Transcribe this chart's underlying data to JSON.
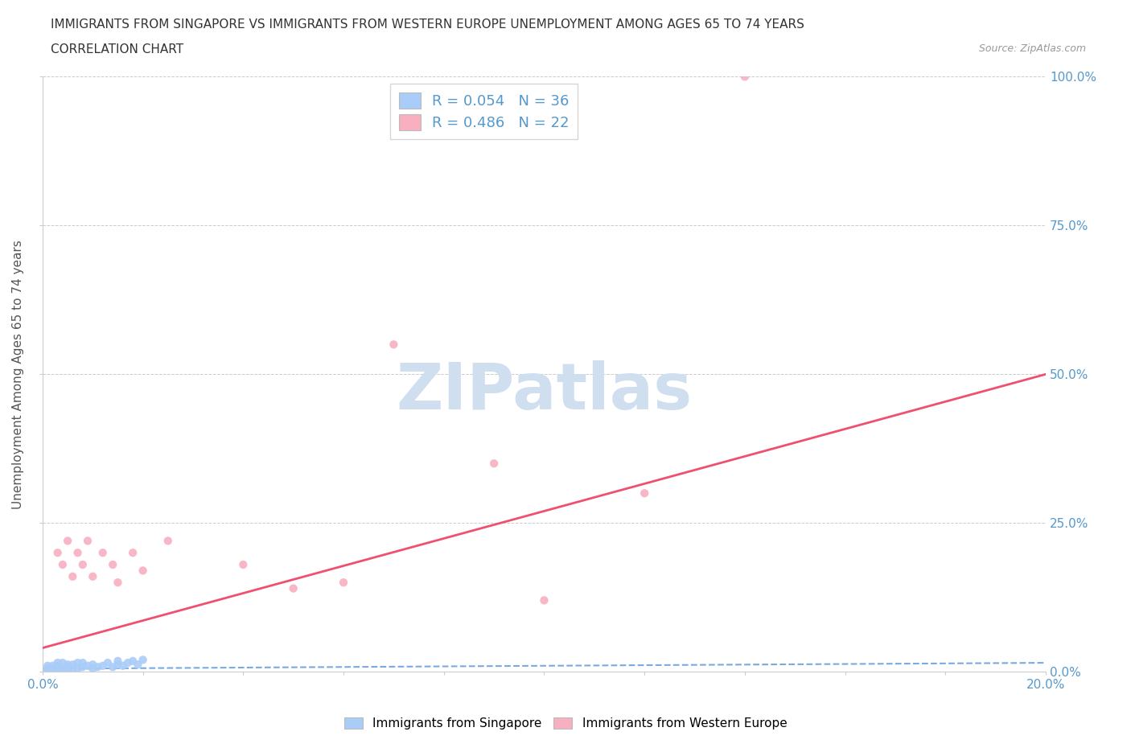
{
  "title_line1": "IMMIGRANTS FROM SINGAPORE VS IMMIGRANTS FROM WESTERN EUROPE UNEMPLOYMENT AMONG AGES 65 TO 74 YEARS",
  "title_line2": "CORRELATION CHART",
  "source_text": "Source: ZipAtlas.com",
  "ylabel": "Unemployment Among Ages 65 to 74 years",
  "xlim": [
    0.0,
    0.2
  ],
  "ylim": [
    0.0,
    1.0
  ],
  "ytick_labels": [
    "0.0%",
    "25.0%",
    "50.0%",
    "75.0%",
    "100.0%"
  ],
  "ytick_values": [
    0.0,
    0.25,
    0.5,
    0.75,
    1.0
  ],
  "xtick_labels": [
    "0.0%",
    "",
    "",
    "",
    "",
    "",
    "",
    "",
    "",
    "",
    "20.0%"
  ],
  "xtick_values": [
    0.0,
    0.02,
    0.04,
    0.06,
    0.08,
    0.1,
    0.12,
    0.14,
    0.16,
    0.18,
    0.2
  ],
  "legend_r1": "R = 0.054",
  "legend_n1": "N = 36",
  "legend_r2": "R = 0.486",
  "legend_n2": "N = 22",
  "singapore_color": "#aaccf8",
  "western_color": "#f8b0c0",
  "singapore_line_color": "#7aaadd",
  "western_line_color": "#f05070",
  "watermark_text": "ZIPatlas",
  "watermark_color": "#d0dff0",
  "background_color": "#ffffff",
  "grid_color": "#cccccc",
  "singapore_x": [
    0.0005,
    0.001,
    0.001,
    0.0015,
    0.002,
    0.002,
    0.0025,
    0.003,
    0.003,
    0.003,
    0.004,
    0.004,
    0.004,
    0.005,
    0.005,
    0.005,
    0.006,
    0.006,
    0.007,
    0.007,
    0.008,
    0.008,
    0.009,
    0.01,
    0.01,
    0.011,
    0.012,
    0.013,
    0.014,
    0.015,
    0.015,
    0.016,
    0.017,
    0.018,
    0.019,
    0.02
  ],
  "singapore_y": [
    0.0,
    0.005,
    0.01,
    0.0,
    0.005,
    0.01,
    0.0,
    0.005,
    0.01,
    0.015,
    0.0,
    0.005,
    0.015,
    0.0,
    0.008,
    0.012,
    0.005,
    0.012,
    0.005,
    0.015,
    0.008,
    0.015,
    0.01,
    0.005,
    0.012,
    0.008,
    0.01,
    0.015,
    0.008,
    0.012,
    0.018,
    0.01,
    0.015,
    0.018,
    0.012,
    0.02
  ],
  "western_x": [
    0.003,
    0.004,
    0.005,
    0.006,
    0.007,
    0.008,
    0.009,
    0.01,
    0.012,
    0.014,
    0.015,
    0.018,
    0.02,
    0.025,
    0.04,
    0.05,
    0.06,
    0.07,
    0.09,
    0.1,
    0.12,
    0.14
  ],
  "western_y": [
    0.2,
    0.18,
    0.22,
    0.16,
    0.2,
    0.18,
    0.22,
    0.16,
    0.2,
    0.18,
    0.15,
    0.2,
    0.17,
    0.22,
    0.18,
    0.14,
    0.15,
    0.55,
    0.35,
    0.12,
    0.3,
    1.0
  ],
  "sg_trend_x": [
    0.0,
    0.2
  ],
  "sg_trend_y": [
    0.005,
    0.015
  ],
  "we_trend_x": [
    0.0,
    0.2
  ],
  "we_trend_y": [
    0.04,
    0.5
  ]
}
